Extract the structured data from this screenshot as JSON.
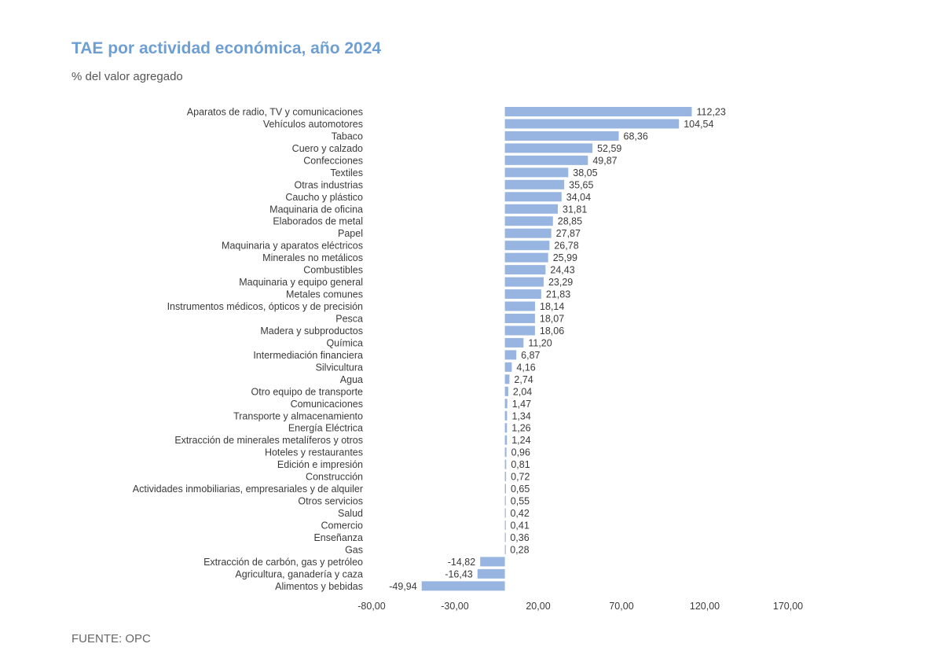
{
  "chart_data": {
    "type": "bar",
    "orientation": "horizontal",
    "title": "TAE por actividad económica, año 2024",
    "subtitle": "% del valor agregado",
    "source": "FUENTE: OPC",
    "bar_color": "#97b5e0",
    "title_color": "#6f9fd2",
    "grid": false,
    "legend": "none",
    "xlim": [
      -80,
      170
    ],
    "xticks": [
      -80,
      -30,
      20,
      70,
      120,
      170
    ],
    "xtick_labels": [
      "-80,00",
      "-30,00",
      "20,00",
      "70,00",
      "120,00",
      "170,00"
    ],
    "categories": [
      "Aparatos de radio, TV y comunicaciones",
      "Vehículos automotores",
      "Tabaco",
      "Cuero y calzado",
      "Confecciones",
      "Textiles",
      "Otras industrias",
      "Caucho y plástico",
      "Maquinaria de oficina",
      "Elaborados de metal",
      "Papel",
      "Maquinaria y aparatos eléctricos",
      "Minerales no metálicos",
      "Combustibles",
      "Maquinaria y equipo general",
      "Metales comunes",
      "Instrumentos médicos, ópticos y de precisión",
      "Pesca",
      "Madera y subproductos",
      "Química",
      "Intermediación financiera",
      "Silvicultura",
      "Agua",
      "Otro equipo de transporte",
      "Comunicaciones",
      "Transporte y almacenamiento",
      "Energía Eléctrica",
      "Extracción de minerales metalíferos y otros",
      "Hoteles y restaurantes",
      "Edición e impresión",
      "Construcción",
      "Actividades inmobiliarias, empresariales y de alquiler",
      "Otros servicios",
      "Salud",
      "Comercio",
      "Enseñanza",
      "Gas",
      "Extracción de carbón, gas y petróleo",
      "Agricultura, ganadería y caza",
      "Alimentos y bebidas"
    ],
    "values": [
      112.23,
      104.54,
      68.36,
      52.59,
      49.87,
      38.05,
      35.65,
      34.04,
      31.81,
      28.85,
      27.87,
      26.78,
      25.99,
      24.43,
      23.29,
      21.83,
      18.14,
      18.07,
      18.06,
      11.2,
      6.87,
      4.16,
      2.74,
      2.04,
      1.47,
      1.34,
      1.26,
      1.24,
      0.96,
      0.81,
      0.72,
      0.65,
      0.55,
      0.42,
      0.41,
      0.36,
      0.28,
      -14.82,
      -16.43,
      -49.94
    ],
    "value_labels": [
      "112,23",
      "104,54",
      "68,36",
      "52,59",
      "49,87",
      "38,05",
      "35,65",
      "34,04",
      "31,81",
      "28,85",
      "27,87",
      "26,78",
      "25,99",
      "24,43",
      "23,29",
      "21,83",
      "18,14",
      "18,07",
      "18,06",
      "11,20",
      "6,87",
      "4,16",
      "2,74",
      "2,04",
      "1,47",
      "1,34",
      "1,26",
      "1,24",
      "0,96",
      "0,81",
      "0,72",
      "0,65",
      "0,55",
      "0,42",
      "0,41",
      "0,36",
      "0,28",
      "-14,82",
      "-16,43",
      "-49,94"
    ]
  }
}
